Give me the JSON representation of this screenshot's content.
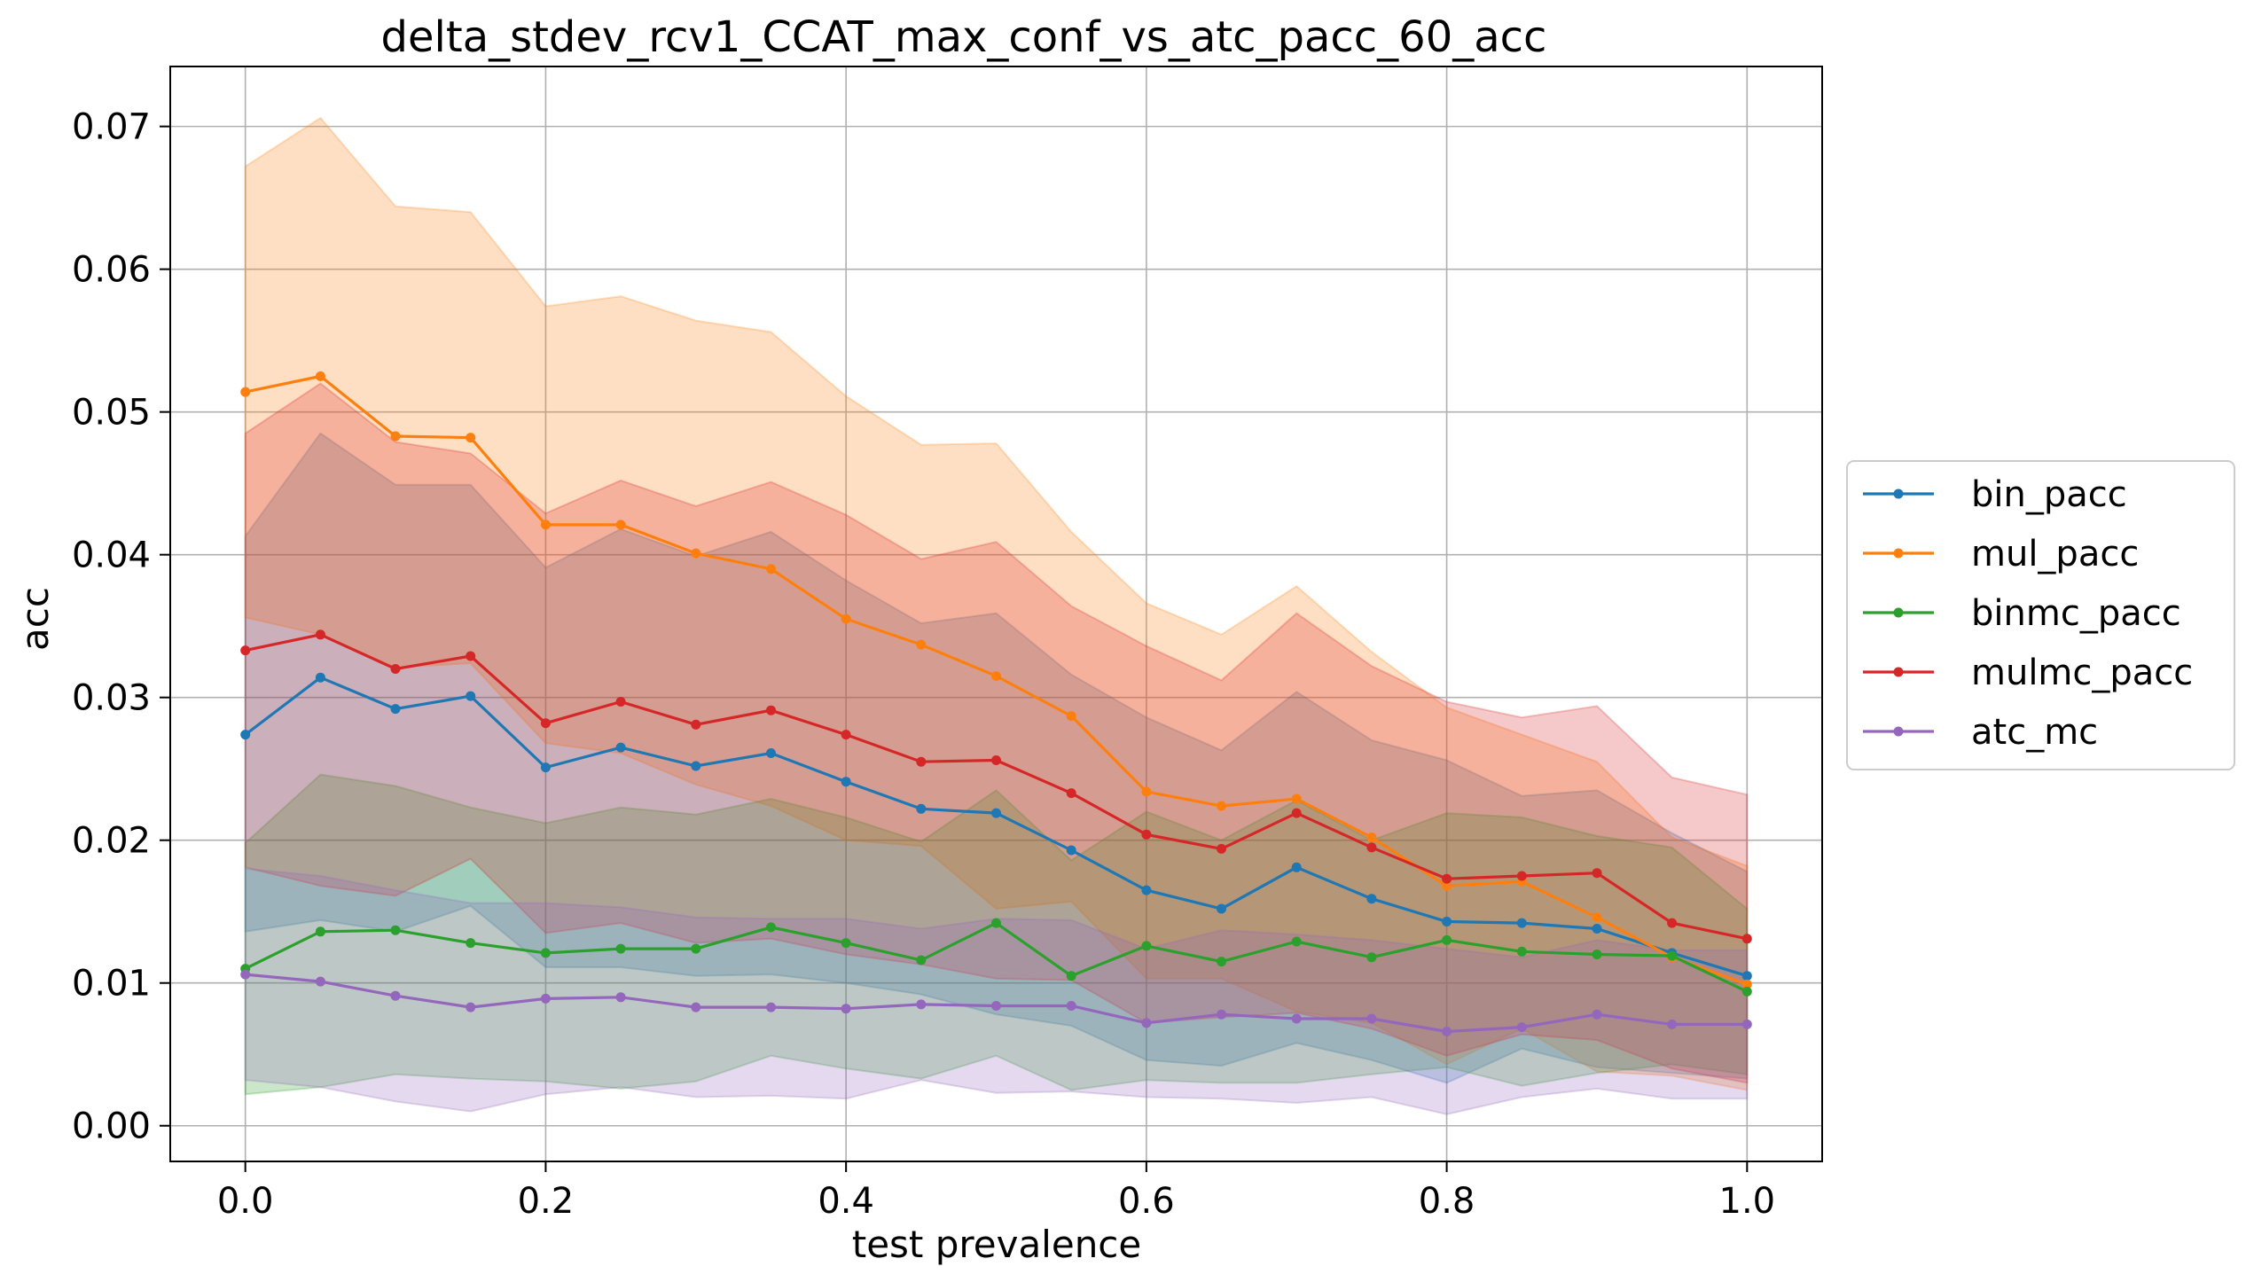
{
  "chart_data": {
    "type": "line",
    "title": "delta_stdev_rcv1_CCAT_max_conf_vs_atc_pacc_60_acc",
    "xlabel": "test prevalence",
    "ylabel": "acc",
    "xlim": [
      -0.05,
      1.05
    ],
    "ylim": [
      -0.0025,
      0.0742
    ],
    "xticks": [
      "0.0",
      "0.2",
      "0.4",
      "0.6",
      "0.8",
      "1.0"
    ],
    "xtick_values": [
      0.0,
      0.2,
      0.4,
      0.6,
      0.8,
      1.0
    ],
    "yticks": [
      "0.00",
      "0.01",
      "0.02",
      "0.03",
      "0.04",
      "0.05",
      "0.06",
      "0.07"
    ],
    "ytick_values": [
      0.0,
      0.01,
      0.02,
      0.03,
      0.04,
      0.05,
      0.06,
      0.07
    ],
    "grid": true,
    "legend_position": "right-outside",
    "x": [
      0.0,
      0.05,
      0.1,
      0.15,
      0.2,
      0.25,
      0.3,
      0.35,
      0.4,
      0.45,
      0.5,
      0.55,
      0.6,
      0.65,
      0.7,
      0.75,
      0.8,
      0.85,
      0.9,
      0.95,
      1.0
    ],
    "series": [
      {
        "name": "bin_pacc",
        "color": "#1f77b4",
        "values": [
          0.0274,
          0.0314,
          0.0292,
          0.0301,
          0.0251,
          0.0265,
          0.0252,
          0.0261,
          0.0241,
          0.0222,
          0.0219,
          0.0193,
          0.0165,
          0.0152,
          0.0181,
          0.0159,
          0.0143,
          0.0142,
          0.0138,
          0.0121,
          0.0105
        ],
        "upper": [
          0.0413,
          0.0485,
          0.0449,
          0.0449,
          0.0391,
          0.0418,
          0.0399,
          0.0416,
          0.0382,
          0.0352,
          0.0359,
          0.0316,
          0.0286,
          0.0263,
          0.0304,
          0.027,
          0.0256,
          0.0231,
          0.0235,
          0.0205,
          0.0178
        ],
        "lower": [
          0.0136,
          0.0144,
          0.0136,
          0.0154,
          0.0111,
          0.0111,
          0.0105,
          0.0106,
          0.01,
          0.0092,
          0.0078,
          0.007,
          0.0046,
          0.0042,
          0.0058,
          0.0046,
          0.003,
          0.0054,
          0.0041,
          0.0037,
          0.0033
        ]
      },
      {
        "name": "mul_pacc",
        "color": "#ff7f0e",
        "values": [
          0.0514,
          0.0525,
          0.0483,
          0.0482,
          0.0421,
          0.0421,
          0.0401,
          0.039,
          0.0355,
          0.0337,
          0.0315,
          0.0287,
          0.0234,
          0.0224,
          0.0229,
          0.0202,
          0.0168,
          0.0171,
          0.0146,
          0.0118,
          0.0099
        ],
        "upper": [
          0.0672,
          0.0706,
          0.0644,
          0.064,
          0.0574,
          0.0581,
          0.0564,
          0.0556,
          0.0511,
          0.0477,
          0.0478,
          0.0416,
          0.0366,
          0.0344,
          0.0378,
          0.0332,
          0.0293,
          0.0274,
          0.0255,
          0.0202,
          0.0182
        ],
        "lower": [
          0.0356,
          0.0344,
          0.0321,
          0.0324,
          0.0268,
          0.0261,
          0.0239,
          0.0224,
          0.02,
          0.0196,
          0.0152,
          0.0157,
          0.0103,
          0.0103,
          0.008,
          0.0072,
          0.0043,
          0.0068,
          0.0038,
          0.0035,
          0.0025
        ]
      },
      {
        "name": "binmc_pacc",
        "color": "#2ca02c",
        "values": [
          0.011,
          0.0136,
          0.0137,
          0.0128,
          0.0121,
          0.0124,
          0.0124,
          0.0139,
          0.0128,
          0.0116,
          0.0142,
          0.0105,
          0.0126,
          0.0115,
          0.0129,
          0.0118,
          0.013,
          0.0122,
          0.012,
          0.0119,
          0.0094
        ],
        "upper": [
          0.0198,
          0.0246,
          0.0238,
          0.0223,
          0.0212,
          0.0223,
          0.0218,
          0.0229,
          0.0216,
          0.0199,
          0.0235,
          0.0186,
          0.022,
          0.02,
          0.0228,
          0.02,
          0.0219,
          0.0216,
          0.0203,
          0.0195,
          0.0152
        ],
        "lower": [
          0.0022,
          0.0027,
          0.0036,
          0.0033,
          0.0031,
          0.0026,
          0.0031,
          0.0049,
          0.004,
          0.0033,
          0.0049,
          0.0025,
          0.0032,
          0.003,
          0.003,
          0.0036,
          0.0041,
          0.0028,
          0.0037,
          0.0043,
          0.0036
        ]
      },
      {
        "name": "mulmc_pacc",
        "color": "#d62728",
        "values": [
          0.0333,
          0.0344,
          0.032,
          0.0329,
          0.0282,
          0.0297,
          0.0281,
          0.0291,
          0.0274,
          0.0255,
          0.0256,
          0.0233,
          0.0204,
          0.0194,
          0.0219,
          0.0195,
          0.0173,
          0.0175,
          0.0177,
          0.0142,
          0.0131
        ],
        "upper": [
          0.0485,
          0.052,
          0.0479,
          0.0471,
          0.0429,
          0.0452,
          0.0434,
          0.0451,
          0.0428,
          0.0397,
          0.0409,
          0.0364,
          0.0336,
          0.0312,
          0.0359,
          0.0322,
          0.0297,
          0.0286,
          0.0294,
          0.0244,
          0.0232
        ],
        "lower": [
          0.0181,
          0.0168,
          0.0161,
          0.0187,
          0.0135,
          0.0142,
          0.0128,
          0.0131,
          0.012,
          0.0113,
          0.0103,
          0.0102,
          0.0072,
          0.0076,
          0.0079,
          0.0068,
          0.0049,
          0.0064,
          0.006,
          0.004,
          0.003
        ]
      },
      {
        "name": "atc_mc",
        "color": "#9467bd",
        "values": [
          0.0106,
          0.0101,
          0.0091,
          0.0083,
          0.0089,
          0.009,
          0.0083,
          0.0083,
          0.0082,
          0.0085,
          0.0084,
          0.0084,
          0.0072,
          0.0078,
          0.0075,
          0.0075,
          0.0066,
          0.0069,
          0.0078,
          0.0071,
          0.0071
        ],
        "upper": [
          0.018,
          0.0175,
          0.0165,
          0.0156,
          0.0156,
          0.0153,
          0.0146,
          0.0145,
          0.0145,
          0.0138,
          0.0145,
          0.0144,
          0.0124,
          0.0137,
          0.0134,
          0.013,
          0.0124,
          0.0118,
          0.013,
          0.0123,
          0.0123
        ],
        "lower": [
          0.0032,
          0.0027,
          0.0017,
          0.001,
          0.0022,
          0.0027,
          0.002,
          0.0021,
          0.0019,
          0.0032,
          0.0023,
          0.0024,
          0.002,
          0.0019,
          0.0016,
          0.002,
          0.0008,
          0.002,
          0.0026,
          0.0019,
          0.0019
        ]
      }
    ]
  }
}
